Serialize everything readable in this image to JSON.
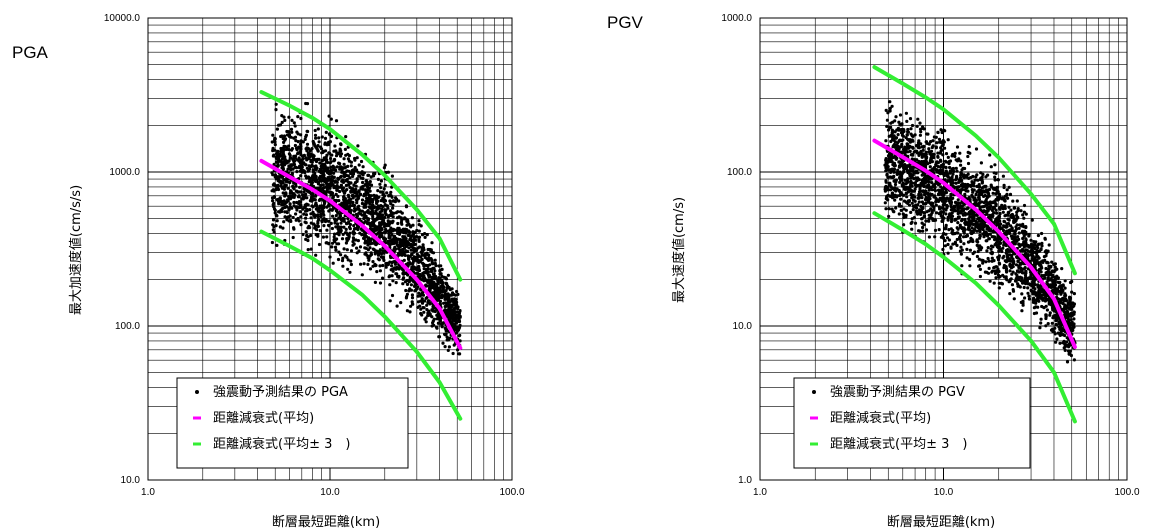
{
  "chart_data": [
    {
      "type": "scatter",
      "panel_label": "PGA",
      "xlabel": "断層最短距離(km)",
      "ylabel": "最大加速度値(cm/s/s)",
      "x_scale": "log",
      "y_scale": "log",
      "xlim": [
        1.0,
        100.0
      ],
      "ylim": [
        10.0,
        10000.0
      ],
      "x_ticks": [
        "1.0",
        "10.0",
        "100.0"
      ],
      "y_ticks": [
        "10.0",
        "100.0",
        "1000.0",
        "10000.0"
      ],
      "grid": true,
      "legend_position": "bottom-left",
      "legend": [
        "強震動予測結果の PGA",
        "距離減衰式(平均)",
        "距離減衰式(平均± 3　)"
      ],
      "series": [
        {
          "name": "強震動予測結果の PGA",
          "kind": "scatter-band",
          "color": "#000000",
          "x_range": [
            4.8,
            52.0
          ],
          "y_upper_at": [
            [
              4.8,
              2900
            ],
            [
              6.5,
              3500
            ],
            [
              10,
              2800
            ],
            [
              20,
              1300
            ],
            [
              35,
              450
            ],
            [
              52,
              170
            ]
          ],
          "y_lower_at": [
            [
              4.8,
              280
            ],
            [
              6.5,
              260
            ],
            [
              10,
              220
            ],
            [
              20,
              140
            ],
            [
              35,
              80
            ],
            [
              52,
              55
            ]
          ]
        },
        {
          "name": "距離減衰式(平均)",
          "kind": "line",
          "color": "#ff00ff",
          "x": [
            4.2,
            6,
            8,
            10,
            15,
            20,
            30,
            40,
            52
          ],
          "y": [
            1180,
            930,
            770,
            650,
            450,
            330,
            200,
            130,
            72
          ]
        },
        {
          "name": "距離減衰式(平均± 3　)",
          "kind": "line-pair",
          "color": "#33ee33",
          "upper": {
            "x": [
              4.2,
              6,
              8,
              10,
              15,
              20,
              30,
              40,
              52
            ],
            "y": [
              3300,
              2700,
              2250,
              1900,
              1300,
              950,
              570,
              370,
              200
            ]
          },
          "lower": {
            "x": [
              4.2,
              6,
              8,
              10,
              15,
              20,
              30,
              40,
              52
            ],
            "y": [
              410,
              330,
              275,
              230,
              160,
              115,
              68,
              43,
              25
            ]
          }
        }
      ]
    },
    {
      "type": "scatter",
      "panel_label": "PGV",
      "xlabel": "断層最短距離(km)",
      "ylabel": "最大速度値(cm/s)",
      "x_scale": "log",
      "y_scale": "log",
      "xlim": [
        1.0,
        100.0
      ],
      "ylim": [
        1.0,
        1000.0
      ],
      "x_ticks": [
        "1.0",
        "10.0",
        "100.0"
      ],
      "y_ticks": [
        "1.0",
        "10.0",
        "100.0",
        "1000.0"
      ],
      "grid": true,
      "legend_position": "bottom-left",
      "legend": [
        "強震動予測結果の PGV",
        "距離減衰式(平均)",
        "距離減衰式(平均± 3　)"
      ],
      "series": [
        {
          "name": "強震動予測結果の PGV",
          "kind": "scatter-band",
          "color": "#000000",
          "x_range": [
            4.8,
            52.0
          ],
          "y_upper_at": [
            [
              4.8,
              330
            ],
            [
              7,
              300
            ],
            [
              10,
              250
            ],
            [
              20,
              130
            ],
            [
              35,
              45
            ],
            [
              52,
              20
            ]
          ],
          "y_lower_at": [
            [
              4.8,
              40
            ],
            [
              7,
              32
            ],
            [
              10,
              25
            ],
            [
              20,
              14
            ],
            [
              35,
              8
            ],
            [
              52,
              4.5
            ]
          ]
        },
        {
          "name": "距離減衰式(平均)",
          "kind": "line",
          "color": "#ff00ff",
          "x": [
            4.2,
            6,
            8,
            10,
            15,
            20,
            30,
            40,
            52
          ],
          "y": [
            160,
            125,
            102,
            85,
            57,
            41,
            24,
            15,
            7.3
          ]
        },
        {
          "name": "距離減衰式(平均± 3　)",
          "kind": "line-pair",
          "color": "#33ee33",
          "upper": {
            "x": [
              4.2,
              6,
              8,
              10,
              15,
              20,
              30,
              40,
              52
            ],
            "y": [
              480,
              375,
              305,
              255,
              172,
              124,
              72,
              46,
              22
            ]
          },
          "lower": {
            "x": [
              4.2,
              6,
              8,
              10,
              15,
              20,
              30,
              40,
              52
            ],
            "y": [
              54,
              42,
              34,
              28,
              19,
              13.6,
              8,
              5,
              2.4
            ]
          }
        }
      ]
    }
  ]
}
